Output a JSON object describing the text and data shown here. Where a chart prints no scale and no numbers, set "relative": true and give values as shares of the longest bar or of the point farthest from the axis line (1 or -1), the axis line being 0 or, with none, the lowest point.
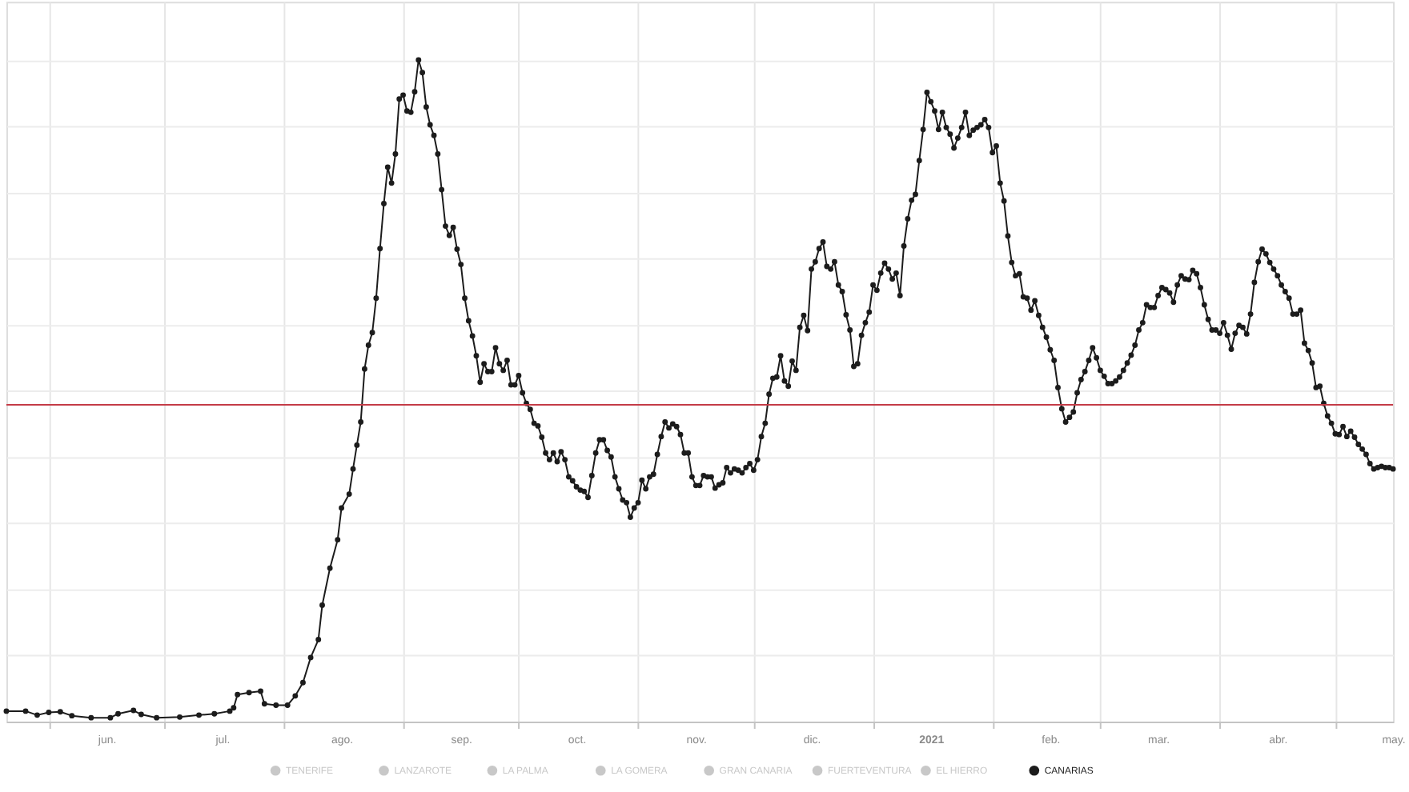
{
  "chart_data": {
    "type": "line",
    "relative": true,
    "grid": true,
    "legend": "bottom",
    "marker": "circle",
    "line_style": "solid",
    "xlim": [
      "2020-05-21",
      "2021-05-16"
    ],
    "xticks": [
      {
        "value": "2020-06-01",
        "label": null
      },
      {
        "value": "2020-06-16",
        "label": "jun."
      },
      {
        "value": "2020-07-01",
        "label": null
      },
      {
        "value": "2020-07-16",
        "label": "jul."
      },
      {
        "value": "2020-08-01",
        "label": null
      },
      {
        "value": "2020-08-16",
        "label": "ago."
      },
      {
        "value": "2020-09-01",
        "label": null
      },
      {
        "value": "2020-09-16",
        "label": "sep."
      },
      {
        "value": "2020-10-01",
        "label": null
      },
      {
        "value": "2020-10-16",
        "label": "oct."
      },
      {
        "value": "2020-11-01",
        "label": null
      },
      {
        "value": "2020-11-16",
        "label": "nov."
      },
      {
        "value": "2020-12-01",
        "label": null
      },
      {
        "value": "2020-12-16",
        "label": "dic."
      },
      {
        "value": "2021-01-01",
        "label": null
      },
      {
        "value": "2021-01-16",
        "label": "2021"
      },
      {
        "value": "2021-02-01",
        "label": null
      },
      {
        "value": "2021-02-16",
        "label": "feb."
      },
      {
        "value": "2021-03-01",
        "label": null
      },
      {
        "value": "2021-03-16",
        "label": "mar."
      },
      {
        "value": "2021-04-01",
        "label": null
      },
      {
        "value": "2021-04-16",
        "label": "abr."
      },
      {
        "value": "2021-05-01",
        "label": null
      },
      {
        "value": "2021-05-16",
        "label": "may."
      }
    ],
    "ref_lines": [
      {
        "axis": "y",
        "value": 0.479,
        "color": "#c43c47"
      }
    ],
    "series": [
      {
        "name": "TENERIFE",
        "color": "#c8c8c8"
      },
      {
        "name": "LANZAROTE",
        "color": "#c8c8c8"
      },
      {
        "name": "LA PALMA",
        "color": "#c8c8c8"
      },
      {
        "name": "LA GOMERA",
        "color": "#c8c8c8"
      },
      {
        "name": "GRAN CANARIA",
        "color": "#c8c8c8"
      },
      {
        "name": "FUERTEVENTURA",
        "color": "#c8c8c8"
      },
      {
        "name": "EL HIERRO",
        "color": "#c8c8c8"
      },
      {
        "name": "CANARIAS",
        "color": "#1c1c1c",
        "x": [
          "2020-05-21",
          "2020-05-26",
          "2020-05-29",
          "2020-06-01",
          "2020-06-04",
          "2020-06-07",
          "2020-06-12",
          "2020-06-17",
          "2020-06-19",
          "2020-06-23",
          "2020-06-25",
          "2020-06-29",
          "2020-07-05",
          "2020-07-10",
          "2020-07-14",
          "2020-07-18",
          "2020-07-19",
          "2020-07-20",
          "2020-07-23",
          "2020-07-26",
          "2020-07-27",
          "2020-07-30",
          "2020-08-02",
          "2020-08-04",
          "2020-08-06",
          "2020-08-08",
          "2020-08-10",
          "2020-08-11",
          "2020-08-13",
          "2020-08-15",
          "2020-08-16",
          "2020-08-18",
          "2020-08-19",
          "2020-08-20",
          "2020-08-21",
          "2020-08-22",
          "2020-08-23",
          "2020-08-24",
          "2020-08-25",
          "2020-08-26",
          "2020-08-27",
          "2020-08-28",
          "2020-08-29",
          "2020-08-30",
          "2020-08-31",
          "2020-09-01",
          "2020-09-02",
          "2020-09-03",
          "2020-09-04",
          "2020-09-05",
          "2020-09-06",
          "2020-09-07",
          "2020-09-08",
          "2020-09-09",
          "2020-09-10",
          "2020-09-11",
          "2020-09-12",
          "2020-09-13",
          "2020-09-14",
          "2020-09-15",
          "2020-09-16",
          "2020-09-17",
          "2020-09-18",
          "2020-09-19",
          "2020-09-20",
          "2020-09-21",
          "2020-09-22",
          "2020-09-23",
          "2020-09-24",
          "2020-09-25",
          "2020-09-26",
          "2020-09-27",
          "2020-09-28",
          "2020-09-29",
          "2020-09-30",
          "2020-10-01",
          "2020-10-02",
          "2020-10-03",
          "2020-10-04",
          "2020-10-05",
          "2020-10-06",
          "2020-10-07",
          "2020-10-08",
          "2020-10-09",
          "2020-10-10",
          "2020-10-11",
          "2020-10-12",
          "2020-10-13",
          "2020-10-14",
          "2020-10-15",
          "2020-10-16",
          "2020-10-17",
          "2020-10-18",
          "2020-10-19",
          "2020-10-20",
          "2020-10-21",
          "2020-10-22",
          "2020-10-23",
          "2020-10-24",
          "2020-10-25",
          "2020-10-26",
          "2020-10-27",
          "2020-10-28",
          "2020-10-29",
          "2020-10-30",
          "2020-10-31",
          "2020-11-01",
          "2020-11-02",
          "2020-11-03",
          "2020-11-04",
          "2020-11-05",
          "2020-11-06",
          "2020-11-07",
          "2020-11-08",
          "2020-11-09",
          "2020-11-10",
          "2020-11-11",
          "2020-11-12",
          "2020-11-13",
          "2020-11-14",
          "2020-11-15",
          "2020-11-16",
          "2020-11-17",
          "2020-11-18",
          "2020-11-19",
          "2020-11-20",
          "2020-11-21",
          "2020-11-22",
          "2020-11-23",
          "2020-11-24",
          "2020-11-25",
          "2020-11-26",
          "2020-11-27",
          "2020-11-28",
          "2020-11-29",
          "2020-11-30",
          "2020-12-01",
          "2020-12-02",
          "2020-12-03",
          "2020-12-04",
          "2020-12-05",
          "2020-12-06",
          "2020-12-07",
          "2020-12-08",
          "2020-12-09",
          "2020-12-10",
          "2020-12-11",
          "2020-12-12",
          "2020-12-13",
          "2020-12-14",
          "2020-12-15",
          "2020-12-16",
          "2020-12-17",
          "2020-12-18",
          "2020-12-19",
          "2020-12-20",
          "2020-12-21",
          "2020-12-22",
          "2020-12-23",
          "2020-12-24",
          "2020-12-25",
          "2020-12-26",
          "2020-12-27",
          "2020-12-28",
          "2020-12-29",
          "2020-12-30",
          "2020-12-31",
          "2021-01-01",
          "2021-01-02",
          "2021-01-03",
          "2021-01-04",
          "2021-01-05",
          "2021-01-06",
          "2021-01-07",
          "2021-01-08",
          "2021-01-09",
          "2021-01-10",
          "2021-01-11",
          "2021-01-12",
          "2021-01-13",
          "2021-01-14",
          "2021-01-15",
          "2021-01-16",
          "2021-01-17",
          "2021-01-18",
          "2021-01-19",
          "2021-01-20",
          "2021-01-21",
          "2021-01-22",
          "2021-01-23",
          "2021-01-24",
          "2021-01-25",
          "2021-01-26",
          "2021-01-27",
          "2021-01-28",
          "2021-01-29",
          "2021-01-30",
          "2021-01-31",
          "2021-02-01",
          "2021-02-02",
          "2021-02-03",
          "2021-02-04",
          "2021-02-05",
          "2021-02-06",
          "2021-02-07",
          "2021-02-08",
          "2021-02-09",
          "2021-02-10",
          "2021-02-11",
          "2021-02-12",
          "2021-02-13",
          "2021-02-14",
          "2021-02-15",
          "2021-02-16",
          "2021-02-17",
          "2021-02-18",
          "2021-02-19",
          "2021-02-20",
          "2021-02-21",
          "2021-02-22",
          "2021-02-23",
          "2021-02-24",
          "2021-02-25",
          "2021-02-26",
          "2021-02-27",
          "2021-02-28",
          "2021-03-01",
          "2021-03-02",
          "2021-03-03",
          "2021-03-04",
          "2021-03-05",
          "2021-03-06",
          "2021-03-07",
          "2021-03-08",
          "2021-03-09",
          "2021-03-10",
          "2021-03-11",
          "2021-03-12",
          "2021-03-13",
          "2021-03-14",
          "2021-03-15",
          "2021-03-16",
          "2021-03-17",
          "2021-03-18",
          "2021-03-19",
          "2021-03-20",
          "2021-03-21",
          "2021-03-22",
          "2021-03-23",
          "2021-03-24",
          "2021-03-25",
          "2021-03-26",
          "2021-03-27",
          "2021-03-28",
          "2021-03-29",
          "2021-03-30",
          "2021-03-31",
          "2021-04-01",
          "2021-04-02",
          "2021-04-03",
          "2021-04-04",
          "2021-04-05",
          "2021-04-06",
          "2021-04-07",
          "2021-04-08",
          "2021-04-09",
          "2021-04-10",
          "2021-04-11",
          "2021-04-12",
          "2021-04-13",
          "2021-04-14",
          "2021-04-15",
          "2021-04-16",
          "2021-04-17",
          "2021-04-18",
          "2021-04-19",
          "2021-04-20",
          "2021-04-21",
          "2021-04-22",
          "2021-04-23",
          "2021-04-24",
          "2021-04-25",
          "2021-04-26",
          "2021-04-27",
          "2021-04-28",
          "2021-04-29",
          "2021-04-30",
          "2021-05-01",
          "2021-05-02",
          "2021-05-03",
          "2021-05-04",
          "2021-05-05",
          "2021-05-06",
          "2021-05-07",
          "2021-05-08",
          "2021-05-09",
          "2021-05-10",
          "2021-05-11",
          "2021-05-12",
          "2021-05-13",
          "2021-05-14",
          "2021-05-15",
          "2021-05-16"
        ],
        "values": [
          0.016,
          0.016,
          0.01,
          0.014,
          0.015,
          0.009,
          0.006,
          0.006,
          0.012,
          0.017,
          0.011,
          0.006,
          0.007,
          0.01,
          0.012,
          0.016,
          0.021,
          0.041,
          0.044,
          0.046,
          0.027,
          0.025,
          0.025,
          0.039,
          0.059,
          0.097,
          0.124,
          0.176,
          0.232,
          0.275,
          0.323,
          0.344,
          0.382,
          0.418,
          0.453,
          0.533,
          0.569,
          0.588,
          0.64,
          0.715,
          0.783,
          0.838,
          0.814,
          0.858,
          0.941,
          0.947,
          0.923,
          0.921,
          0.952,
          1.0,
          0.981,
          0.929,
          0.902,
          0.886,
          0.858,
          0.804,
          0.749,
          0.735,
          0.747,
          0.714,
          0.691,
          0.64,
          0.606,
          0.583,
          0.553,
          0.513,
          0.541,
          0.529,
          0.529,
          0.565,
          0.541,
          0.531,
          0.546,
          0.509,
          0.509,
          0.523,
          0.497,
          0.481,
          0.472,
          0.451,
          0.447,
          0.43,
          0.406,
          0.396,
          0.406,
          0.393,
          0.408,
          0.396,
          0.37,
          0.364,
          0.355,
          0.35,
          0.348,
          0.339,
          0.372,
          0.406,
          0.426,
          0.426,
          0.41,
          0.4,
          0.37,
          0.352,
          0.335,
          0.331,
          0.309,
          0.323,
          0.331,
          0.365,
          0.352,
          0.37,
          0.374,
          0.404,
          0.431,
          0.453,
          0.444,
          0.45,
          0.446,
          0.434,
          0.406,
          0.406,
          0.37,
          0.357,
          0.357,
          0.372,
          0.37,
          0.37,
          0.353,
          0.358,
          0.361,
          0.384,
          0.376,
          0.382,
          0.38,
          0.376,
          0.384,
          0.39,
          0.38,
          0.396,
          0.431,
          0.451,
          0.495,
          0.519,
          0.521,
          0.553,
          0.515,
          0.507,
          0.545,
          0.531,
          0.596,
          0.614,
          0.591,
          0.684,
          0.695,
          0.715,
          0.725,
          0.688,
          0.684,
          0.695,
          0.66,
          0.65,
          0.615,
          0.592,
          0.537,
          0.541,
          0.584,
          0.603,
          0.619,
          0.66,
          0.652,
          0.678,
          0.693,
          0.684,
          0.669,
          0.678,
          0.644,
          0.719,
          0.76,
          0.788,
          0.797,
          0.848,
          0.895,
          0.951,
          0.937,
          0.923,
          0.895,
          0.921,
          0.898,
          0.888,
          0.867,
          0.882,
          0.898,
          0.921,
          0.886,
          0.894,
          0.898,
          0.902,
          0.91,
          0.898,
          0.86,
          0.87,
          0.814,
          0.787,
          0.734,
          0.694,
          0.674,
          0.677,
          0.642,
          0.64,
          0.622,
          0.636,
          0.614,
          0.596,
          0.581,
          0.562,
          0.546,
          0.505,
          0.473,
          0.453,
          0.46,
          0.468,
          0.497,
          0.517,
          0.529,
          0.546,
          0.565,
          0.55,
          0.531,
          0.522,
          0.511,
          0.511,
          0.515,
          0.521,
          0.531,
          0.542,
          0.554,
          0.569,
          0.592,
          0.603,
          0.63,
          0.626,
          0.626,
          0.644,
          0.656,
          0.653,
          0.648,
          0.634,
          0.66,
          0.674,
          0.669,
          0.668,
          0.682,
          0.677,
          0.656,
          0.63,
          0.608,
          0.592,
          0.592,
          0.587,
          0.603,
          0.584,
          0.563,
          0.587,
          0.599,
          0.596,
          0.586,
          0.616,
          0.664,
          0.695,
          0.714,
          0.707,
          0.694,
          0.684,
          0.674,
          0.66,
          0.65,
          0.64,
          0.616,
          0.616,
          0.622,
          0.572,
          0.561,
          0.542,
          0.505,
          0.507,
          0.481,
          0.462,
          0.451,
          0.435,
          0.434,
          0.446,
          0.431,
          0.439,
          0.43,
          0.419,
          0.412,
          0.404,
          0.39,
          0.382,
          0.384,
          0.386,
          0.384,
          0.384,
          0.382
        ]
      }
    ]
  }
}
